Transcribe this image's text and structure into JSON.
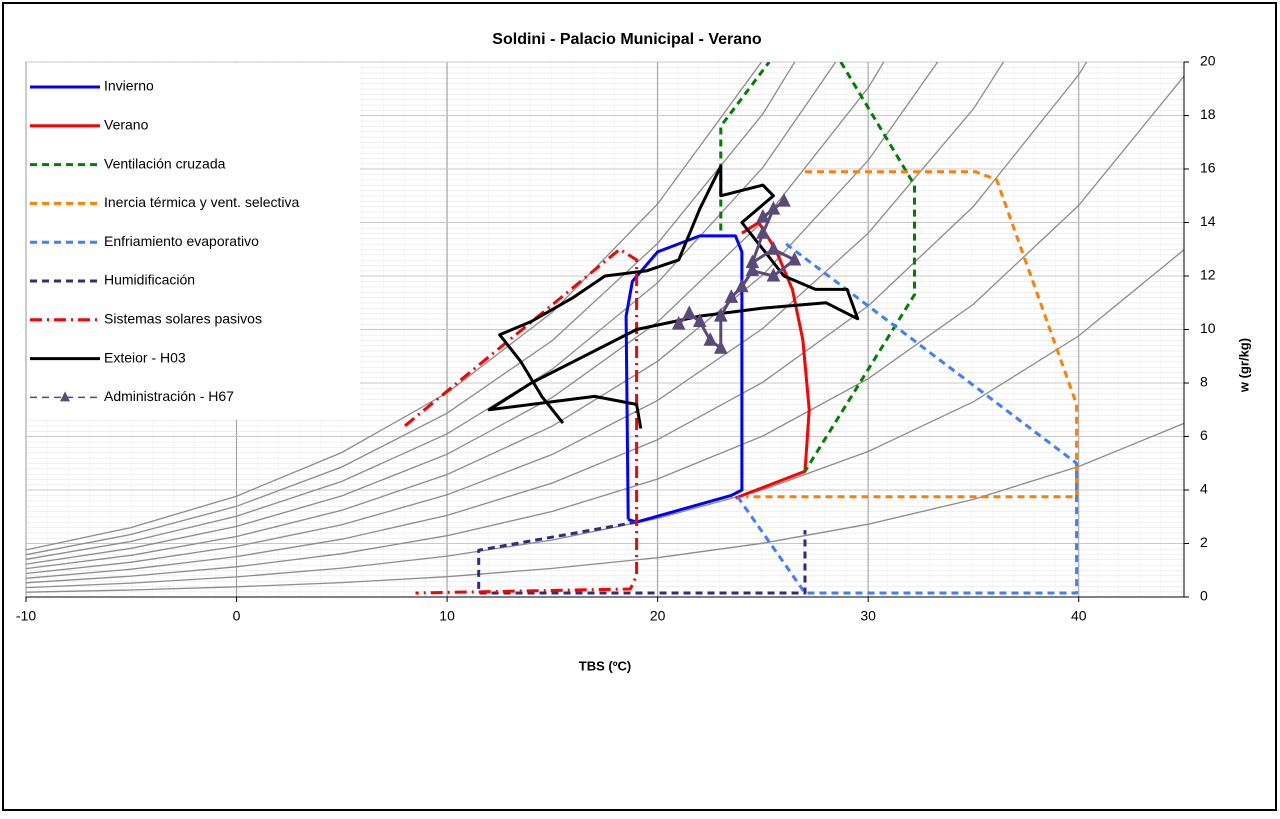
{
  "chart_data": {
    "type": "line",
    "title": "Soldini - Palacio Municipal - Verano",
    "xlabel": "TBS (ºC)",
    "ylabel": "w (gr/kg)",
    "xlim": [
      -10,
      45
    ],
    "xticks": [
      -10,
      0,
      10,
      20,
      30,
      40
    ],
    "ylim": [
      0,
      20
    ],
    "yticks": [
      0,
      2,
      4,
      6,
      8,
      10,
      12,
      14,
      16,
      18,
      20
    ],
    "grid": true,
    "legend": "upper left",
    "y_axis_side": "right",
    "rh_color": "#8c8c8c",
    "rh_curves": [
      {
        "x": [
          -10,
          -5,
          0,
          5,
          10,
          15,
          20,
          25,
          30,
          35,
          40,
          45
        ],
        "values": [
          0.18,
          0.26,
          0.38,
          0.54,
          0.76,
          1.07,
          1.47,
          2.01,
          2.72,
          3.65,
          4.88,
          6.49
        ]
      },
      {
        "x": [
          -10,
          -5,
          0,
          5,
          10,
          15,
          20,
          25,
          30,
          35,
          40,
          45
        ],
        "values": [
          0.35,
          0.52,
          0.75,
          1.08,
          1.53,
          2.13,
          2.94,
          4.01,
          5.44,
          7.3,
          9.76,
          12.98
        ]
      },
      {
        "x": [
          -10,
          -5,
          0,
          5,
          10,
          15,
          20,
          25,
          30,
          35,
          40,
          45
        ],
        "values": [
          0.53,
          0.78,
          1.13,
          1.62,
          2.29,
          3.2,
          4.41,
          6.02,
          8.16,
          10.95,
          14.64,
          19.47
        ]
      },
      {
        "x": [
          -10,
          -5,
          0,
          5,
          10,
          15,
          20,
          25,
          30,
          35,
          40,
          45
        ],
        "values": [
          0.7,
          1.04,
          1.51,
          2.16,
          3.05,
          4.26,
          5.88,
          8.03,
          10.88,
          14.6,
          19.52,
          25.96
        ]
      },
      {
        "x": [
          -10,
          -5,
          0,
          5,
          10,
          15,
          20,
          25,
          30,
          35,
          40
        ],
        "values": [
          0.88,
          1.3,
          1.89,
          2.7,
          3.82,
          5.33,
          7.35,
          10.04,
          13.6,
          18.25,
          24.4
        ]
      },
      {
        "x": [
          -10,
          -5,
          0,
          5,
          10,
          15,
          20,
          25,
          30,
          35
        ],
        "values": [
          1.06,
          1.56,
          2.26,
          3.24,
          4.58,
          6.39,
          8.81,
          12.04,
          16.32,
          21.9
        ]
      },
      {
        "x": [
          -10,
          -5,
          0,
          5,
          10,
          15,
          20,
          25,
          30,
          35
        ],
        "values": [
          1.23,
          1.82,
          2.64,
          3.78,
          5.34,
          7.46,
          10.28,
          14.05,
          19.04,
          25.55
        ]
      },
      {
        "x": [
          -10,
          -5,
          0,
          5,
          10,
          15,
          20,
          25,
          30
        ],
        "values": [
          1.41,
          2.08,
          3.02,
          4.32,
          6.1,
          8.52,
          11.75,
          16.06,
          21.76
        ]
      },
      {
        "x": [
          -10,
          -5,
          0,
          5,
          10,
          15,
          20,
          25,
          30
        ],
        "values": [
          1.58,
          2.34,
          3.39,
          4.86,
          6.87,
          9.59,
          13.22,
          18.06,
          24.48
        ]
      },
      {
        "x": [
          -10,
          -5,
          0,
          5,
          10,
          15,
          20,
          25
        ],
        "values": [
          1.76,
          2.6,
          3.77,
          5.4,
          7.63,
          10.65,
          14.69,
          20.07
        ]
      }
    ],
    "series": [
      {
        "name": "Invierno",
        "color": "#0000ff",
        "dash": "solid",
        "x": [
          18.6,
          18.5,
          18.8,
          20,
          22,
          23.7,
          24,
          24,
          23.5,
          19,
          18.6
        ],
        "values": [
          2.9,
          10.5,
          11.8,
          12.9,
          13.5,
          13.5,
          12.9,
          4,
          3.8,
          2.8,
          2.9
        ]
      },
      {
        "name": "Verano",
        "color": "#ff0000",
        "dash": "solid",
        "x": [
          23.7,
          27,
          27.2,
          26.9,
          26.4,
          25.6,
          24.8,
          24
        ],
        "values": [
          3.7,
          4.7,
          7,
          9.6,
          11.5,
          13,
          14,
          13.6
        ]
      },
      {
        "name": "Ventilación cruzada",
        "color": "#008000",
        "dash": "dashed",
        "x": [
          23,
          23,
          25.3,
          null,
          28.7,
          32.2,
          32.2,
          27
        ],
        "values": [
          13.7,
          17.6,
          20,
          null,
          20,
          15.4,
          11.3,
          4.7
        ]
      },
      {
        "name": "Inercia térmica y vent. selectiva",
        "color": "#ff8000",
        "dash": "dashed",
        "x": [
          27,
          35.1,
          36.1,
          39.9,
          39.9,
          24.2
        ],
        "values": [
          15.9,
          15.9,
          15.6,
          7.2,
          3.75,
          3.75
        ]
      },
      {
        "name": "Enfriamiento evaporativo",
        "color": "#3f7fff",
        "dash": "dashed",
        "x": [
          23.8,
          27,
          39.9,
          39.9,
          26.1
        ],
        "values": [
          3.75,
          0.15,
          0.15,
          5,
          13.2
        ]
      },
      {
        "name": "Humidificación",
        "color": "#2e2e80",
        "dash": "dashed",
        "x": [
          19,
          11.5,
          11.5,
          27,
          27
        ],
        "values": [
          2.8,
          1.75,
          0.15,
          0.15,
          2.5
        ]
      },
      {
        "name": "Sistemas solares pasivos",
        "color": "#ff0000",
        "dash": "dashdot",
        "x": [
          8,
          18.2,
          19,
          19,
          18.7,
          8.5
        ],
        "values": [
          6.4,
          13,
          12.6,
          0.8,
          0.3,
          0.15
        ]
      },
      {
        "name": "Exteior - H03",
        "color": "#000000",
        "dash": "solid",
        "x": [
          15.5,
          14.5,
          13.5,
          12.5,
          14,
          16,
          17.5,
          19.5,
          21,
          22,
          23,
          23,
          25,
          25.5,
          24,
          26,
          27.5,
          29,
          29.5,
          28,
          25,
          22,
          19,
          16.5,
          14,
          12,
          17,
          19,
          19.2
        ],
        "values": [
          6.5,
          7.5,
          8.8,
          9.8,
          10.3,
          11.2,
          12,
          12.2,
          12.6,
          14.5,
          16.1,
          15,
          15.4,
          15,
          14,
          12,
          11.5,
          11.5,
          10.4,
          11,
          10.8,
          10.5,
          10,
          9,
          8,
          7,
          7.5,
          7.2,
          6.3
        ]
      },
      {
        "name": "Administración - H67",
        "color": "#5a4a7a",
        "dash": "solid",
        "marker": "triangle",
        "x": [
          21,
          21.5,
          22,
          22.5,
          23,
          23,
          23.5,
          24,
          24.5,
          25.5,
          26.5,
          25.5,
          24.5,
          25,
          25.5,
          26,
          25
        ],
        "values": [
          10.2,
          10.6,
          10.3,
          9.6,
          9.3,
          10.5,
          11.2,
          11.6,
          12.2,
          12,
          12.6,
          13,
          12.5,
          13.6,
          14.5,
          14.8,
          14.2
        ]
      }
    ]
  }
}
